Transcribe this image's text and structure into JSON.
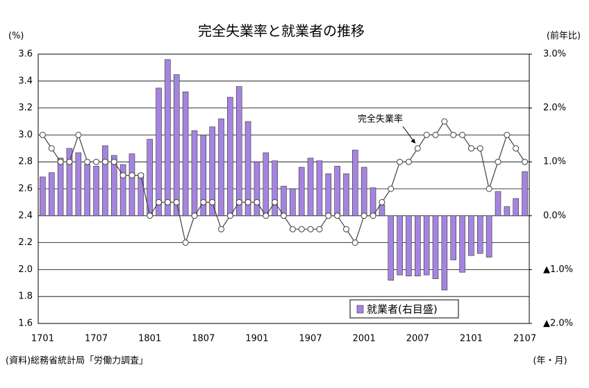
{
  "chart_data": {
    "type": "bar_line",
    "title": "完全失業率と就業者の推移",
    "y_axis_label": "(%)",
    "y2_axis_label": "(前年比)",
    "x_axis_label": "(年・月)",
    "source": "(資料)総務省統計局「労働力調査」",
    "annotation": "完全失業率",
    "categories": [
      "1701",
      null,
      null,
      null,
      null,
      null,
      "1707",
      null,
      null,
      null,
      null,
      null,
      "1801",
      null,
      null,
      null,
      null,
      null,
      "1807",
      null,
      null,
      null,
      null,
      null,
      "1901",
      null,
      null,
      null,
      null,
      null,
      "1907",
      null,
      null,
      null,
      null,
      null,
      "2001",
      null,
      null,
      null,
      null,
      null,
      "2007",
      null,
      null,
      null,
      null,
      null,
      "2101",
      null,
      null,
      null,
      null,
      null,
      "2107"
    ],
    "series": [
      {
        "name": "就業者(右目盛)",
        "type": "bar",
        "axis": "y2",
        "color": "#a584e0",
        "values": [
          0.72,
          0.8,
          1.07,
          1.25,
          1.17,
          0.95,
          0.92,
          1.3,
          1.12,
          0.95,
          1.15,
          0.78,
          1.42,
          2.37,
          2.9,
          2.62,
          2.3,
          1.58,
          1.5,
          1.65,
          1.8,
          2.2,
          2.4,
          1.75,
          1.0,
          1.17,
          1.02,
          0.55,
          0.5,
          0.9,
          1.07,
          1.02,
          0.78,
          0.92,
          0.78,
          1.22,
          0.9,
          0.52,
          0.2,
          -1.2,
          -1.1,
          -1.12,
          -1.12,
          -1.1,
          -1.17,
          -1.38,
          -0.82,
          -1.05,
          -0.74,
          -0.7,
          -0.77,
          0.45,
          0.17,
          0.32,
          0.82
        ]
      },
      {
        "name": "完全失業率",
        "type": "line",
        "axis": "y",
        "color": "#404040",
        "values": [
          3.0,
          2.9,
          2.8,
          2.8,
          3.0,
          2.8,
          2.8,
          2.8,
          2.8,
          2.7,
          2.7,
          2.7,
          2.4,
          2.5,
          2.5,
          2.5,
          2.2,
          2.4,
          2.5,
          2.5,
          2.3,
          2.4,
          2.5,
          2.5,
          2.5,
          2.4,
          2.5,
          2.4,
          2.3,
          2.3,
          2.3,
          2.3,
          2.4,
          2.4,
          2.3,
          2.2,
          2.4,
          2.4,
          2.5,
          2.6,
          2.8,
          2.8,
          2.9,
          3.0,
          3.0,
          3.1,
          3.0,
          3.0,
          2.9,
          2.9,
          2.6,
          2.8,
          3.0,
          2.9,
          2.8
        ]
      }
    ],
    "ylim": [
      1.6,
      3.6
    ],
    "yticks": [
      1.6,
      1.8,
      {
        "value": 2.0,
        "label": "2.0"
      },
      2.2,
      2.4,
      2.6,
      2.8,
      {
        "value": 3.0,
        "label": "3.0"
      },
      3.2,
      3.4,
      3.6
    ],
    "y2lim": [
      -2.0,
      3.0
    ],
    "y2ticks": [
      {
        "value": -2.0,
        "label": "▲2.0%"
      },
      {
        "value": -1.0,
        "label": "▲1.0%"
      },
      {
        "value": 0.0,
        "label": "0.0%"
      },
      {
        "value": 1.0,
        "label": "1.0%"
      },
      {
        "value": 2.0,
        "label": "2.0%"
      },
      {
        "value": 3.0,
        "label": "3.0%"
      }
    ],
    "grid": true
  }
}
